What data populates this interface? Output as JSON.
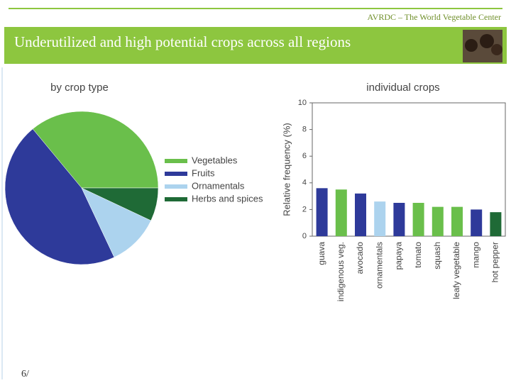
{
  "slide": {
    "header": "AVRDC – The World Vegetable Center",
    "title": "Underutilized and high potential crops across all regions",
    "page": "6/"
  },
  "chart_data": [
    {
      "type": "pie",
      "title": "by crop type",
      "categories": [
        "Vegetables",
        "Fruits",
        "Ornamentals",
        "Herbs and spices"
      ],
      "values": [
        36,
        46,
        11,
        7
      ],
      "colors": [
        "#6abf4b",
        "#2e3a9a",
        "#acd3ee",
        "#1f6a36"
      ]
    },
    {
      "type": "bar",
      "title": "individual crops",
      "ylabel": "Relative frequency (%)",
      "categories": [
        "guava",
        "indigenous veg.",
        "avocado",
        "ornamentals",
        "papaya",
        "tomato",
        "squash",
        "leafy vegetable",
        "mango",
        "hot pepper"
      ],
      "values": [
        3.6,
        3.5,
        3.2,
        2.6,
        2.5,
        2.5,
        2.2,
        2.2,
        2.0,
        1.8
      ],
      "colors": [
        "#2e3a9a",
        "#6abf4b",
        "#2e3a9a",
        "#acd3ee",
        "#2e3a9a",
        "#6abf4b",
        "#6abf4b",
        "#6abf4b",
        "#2e3a9a",
        "#1f6a36"
      ],
      "ylim": [
        0,
        10
      ],
      "yticks": [
        0,
        2,
        4,
        6,
        8,
        10
      ],
      "grid": false
    }
  ]
}
